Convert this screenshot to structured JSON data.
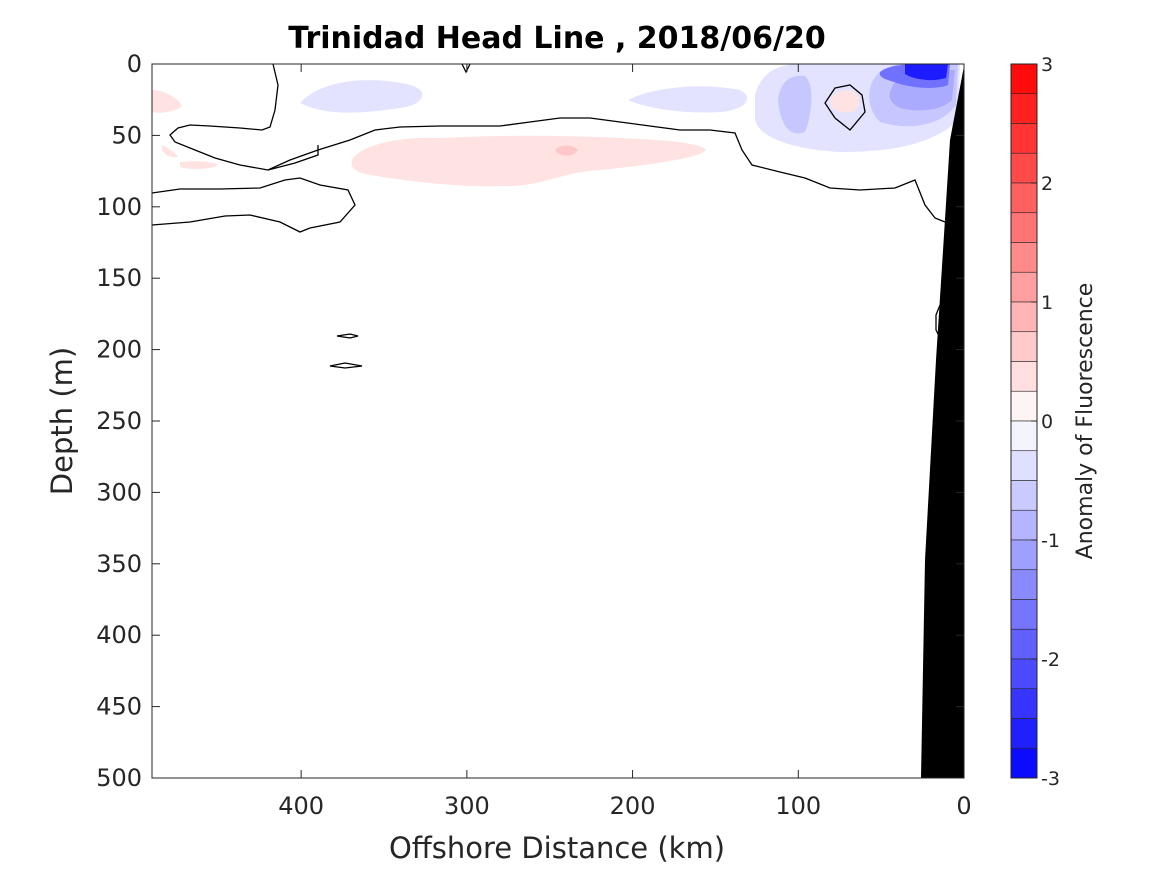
{
  "chart_data": {
    "type": "heatmap",
    "title": "Trinidad Head Line , 2018/06/20",
    "xlabel": "Offshore Distance (km)",
    "ylabel": "Depth (m)",
    "x_direction": "reversed",
    "xlim": [
      490,
      0
    ],
    "ylim": [
      0,
      500
    ],
    "y_direction": "depth increasing downward",
    "x_ticks": [
      400,
      300,
      200,
      100,
      0
    ],
    "y_ticks": [
      0,
      50,
      100,
      150,
      200,
      250,
      300,
      350,
      400,
      450,
      500
    ],
    "colorbar": {
      "label": "Anomaly of Fluorescence",
      "range": [
        -3,
        3
      ],
      "step": 0.25,
      "ticks": [
        3,
        2,
        1,
        0,
        -1,
        -2,
        -3
      ],
      "colormap": "blue-white-red diverging",
      "neg_color": "#0000ff",
      "pos_color": "#ff0000",
      "mid_color": "#ffffff"
    },
    "zero_contour": "black line",
    "anomaly_regions": [
      {
        "sign": "negative",
        "x_range": [
          30,
          0
        ],
        "depth_range": [
          0,
          15
        ],
        "peak": -2.0
      },
      {
        "sign": "negative",
        "x_range": [
          60,
          10
        ],
        "depth_range": [
          0,
          50
        ],
        "peak": -1.0
      },
      {
        "sign": "negative",
        "x_range": [
          120,
          60
        ],
        "depth_range": [
          0,
          60
        ],
        "peak": -0.6
      },
      {
        "sign": "negative",
        "x_range": [
          190,
          130
        ],
        "depth_range": [
          20,
          35
        ],
        "peak": -0.25
      },
      {
        "sign": "negative",
        "x_range": [
          400,
          320
        ],
        "depth_range": [
          10,
          40
        ],
        "peak": -0.25
      },
      {
        "sign": "positive",
        "x_range": [
          85,
          60
        ],
        "depth_range": [
          20,
          45
        ],
        "peak": 0.5
      },
      {
        "sign": "positive",
        "x_range": [
          350,
          150
        ],
        "depth_range": [
          45,
          85
        ],
        "peak": 0.5
      },
      {
        "sign": "positive",
        "x_range": [
          490,
          470
        ],
        "depth_range": [
          20,
          40
        ],
        "peak": 0.25
      },
      {
        "sign": "positive",
        "x_range": [
          490,
          440
        ],
        "depth_range": [
          55,
          75
        ],
        "peak": 0.25
      }
    ],
    "bathymetry": {
      "color": "#000000",
      "x_at_surface": 0,
      "x_at_500m": 25
    }
  }
}
